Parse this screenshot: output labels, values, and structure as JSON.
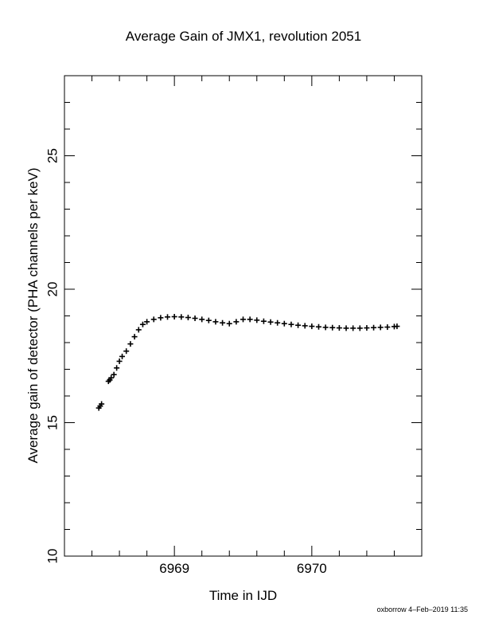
{
  "chart_data": {
    "type": "scatter",
    "title": "Average Gain of JMX1, revolution 2051",
    "xlabel": "Time in IJD",
    "ylabel": "Average gain of detector (PHA channels per keV)",
    "xlim": [
      6968.2,
      6970.8
    ],
    "ylim": [
      10,
      28
    ],
    "x_ticks": [
      6969,
      6970
    ],
    "y_ticks": [
      10,
      15,
      20,
      25
    ],
    "marker": "plus",
    "color": "#000000",
    "points": [
      [
        6968.45,
        15.55
      ],
      [
        6968.46,
        15.62
      ],
      [
        6968.47,
        15.7
      ],
      [
        6968.52,
        16.55
      ],
      [
        6968.53,
        16.6
      ],
      [
        6968.54,
        16.68
      ],
      [
        6968.56,
        16.8
      ],
      [
        6968.58,
        17.05
      ],
      [
        6968.6,
        17.3
      ],
      [
        6968.62,
        17.48
      ],
      [
        6968.65,
        17.68
      ],
      [
        6968.68,
        17.95
      ],
      [
        6968.71,
        18.22
      ],
      [
        6968.74,
        18.48
      ],
      [
        6968.77,
        18.68
      ],
      [
        6968.8,
        18.78
      ],
      [
        6968.85,
        18.87
      ],
      [
        6968.9,
        18.93
      ],
      [
        6968.95,
        18.96
      ],
      [
        6969.0,
        18.97
      ],
      [
        6969.05,
        18.96
      ],
      [
        6969.1,
        18.94
      ],
      [
        6969.15,
        18.91
      ],
      [
        6969.2,
        18.87
      ],
      [
        6969.25,
        18.83
      ],
      [
        6969.3,
        18.78
      ],
      [
        6969.35,
        18.74
      ],
      [
        6969.4,
        18.71
      ],
      [
        6969.45,
        18.78
      ],
      [
        6969.5,
        18.87
      ],
      [
        6969.55,
        18.87
      ],
      [
        6969.6,
        18.84
      ],
      [
        6969.65,
        18.8
      ],
      [
        6969.7,
        18.77
      ],
      [
        6969.75,
        18.74
      ],
      [
        6969.8,
        18.71
      ],
      [
        6969.85,
        18.68
      ],
      [
        6969.9,
        18.65
      ],
      [
        6969.95,
        18.63
      ],
      [
        6970.0,
        18.61
      ],
      [
        6970.05,
        18.59
      ],
      [
        6970.1,
        18.57
      ],
      [
        6970.15,
        18.56
      ],
      [
        6970.2,
        18.55
      ],
      [
        6970.25,
        18.54
      ],
      [
        6970.3,
        18.54
      ],
      [
        6970.35,
        18.54
      ],
      [
        6970.4,
        18.55
      ],
      [
        6970.45,
        18.56
      ],
      [
        6970.5,
        18.57
      ],
      [
        6970.55,
        18.58
      ],
      [
        6970.6,
        18.6
      ],
      [
        6970.62,
        18.61
      ]
    ]
  },
  "footer": "oxborrow  4–Feb–2019 11:35"
}
